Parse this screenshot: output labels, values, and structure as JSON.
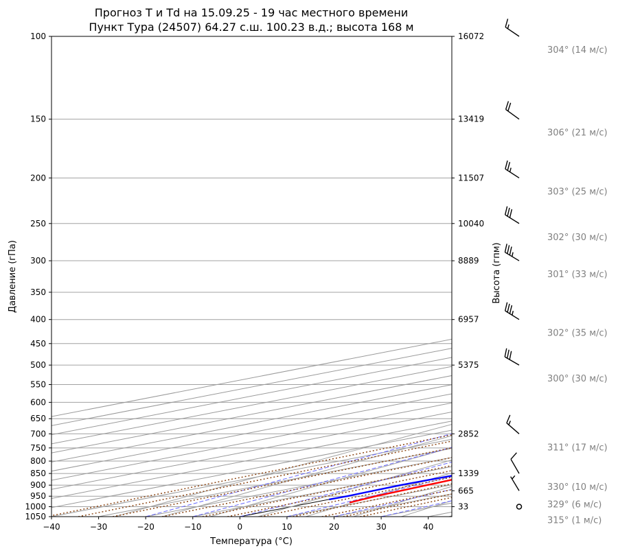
{
  "title": {
    "line1": "Прогноз T и Td на 15.09.25 - 19 час местного времени",
    "line2": "Пункт Тура (24507) 64.27 с.ш. 100.23 в.д.; высота 168 м"
  },
  "chart_data": {
    "type": "line",
    "subtype": "skew-T log-p diagram",
    "xlabel": "Температура (°C)",
    "ylabel": "Давление (гПа)",
    "ylabel_right": "Высота (гпм)",
    "xlim": [
      -40,
      45
    ],
    "ylim": [
      1050,
      100
    ],
    "y_scale": "log",
    "x_ticks": [
      -40,
      -30,
      -20,
      -10,
      0,
      10,
      20,
      30,
      40
    ],
    "y_ticks": [
      100,
      150,
      200,
      250,
      300,
      350,
      400,
      450,
      500,
      550,
      600,
      650,
      700,
      750,
      800,
      850,
      900,
      950,
      1000,
      1050
    ],
    "height_ticks": [
      {
        "p": 100,
        "h": "16072"
      },
      {
        "p": 150,
        "h": "13419"
      },
      {
        "p": 200,
        "h": "11507"
      },
      {
        "p": 250,
        "h": "10040"
      },
      {
        "p": 300,
        "h": "8889"
      },
      {
        "p": 400,
        "h": "6957"
      },
      {
        "p": 500,
        "h": "5375"
      },
      {
        "p": 700,
        "h": "2852"
      },
      {
        "p": 850,
        "h": "1339"
      },
      {
        "p": 925,
        "h": "665"
      },
      {
        "p": 1000,
        "h": "33"
      }
    ],
    "series": [
      {
        "color": "#ff0000",
        "points": [
          [
            980,
            7.8
          ],
          [
            950,
            6.4
          ],
          [
            900,
            5.1
          ],
          [
            850,
            3.7
          ],
          [
            820,
            2.6
          ],
          [
            800,
            3.3
          ],
          [
            780,
            5.4
          ],
          [
            750,
            6.8
          ],
          [
            720,
            7.4
          ],
          [
            700,
            7.7
          ],
          [
            650,
            6.4
          ],
          [
            600,
            4.8
          ],
          [
            550,
            2.3
          ],
          [
            500,
            -0.5
          ],
          [
            450,
            -4.7
          ],
          [
            400,
            -9.6
          ],
          [
            350,
            -16.1
          ],
          [
            300,
            -24.0
          ],
          [
            280,
            -27.5
          ],
          [
            260,
            -30.4
          ],
          [
            250,
            -30.8
          ],
          [
            230,
            -30.3
          ],
          [
            220,
            -31.6
          ],
          [
            200,
            -37.7
          ],
          [
            180,
            -42.8
          ],
          [
            170,
            -45.3
          ],
          [
            160,
            -49.1
          ],
          [
            150,
            -52.6
          ],
          [
            140,
            -55.1
          ],
          [
            130,
            -57.9
          ],
          [
            120,
            -60.8
          ],
          [
            110,
            -62.9
          ],
          [
            104,
            -64.4
          ]
        ]
      },
      {
        "color": "#0000ff",
        "points": [
          [
            965,
            0.0
          ],
          [
            950,
            0.3
          ],
          [
            900,
            -0.5
          ],
          [
            870,
            -0.1
          ],
          [
            850,
            0.2
          ],
          [
            800,
            2.3
          ],
          [
            780,
            -2.0
          ],
          [
            760,
            -10.4
          ],
          [
            730,
            -14.1
          ],
          [
            700,
            -19.5
          ],
          [
            670,
            -25.3
          ],
          [
            650,
            -27.4
          ],
          [
            620,
            -25.0
          ],
          [
            600,
            -17.1
          ],
          [
            570,
            -15.3
          ],
          [
            550,
            -16.8
          ],
          [
            500,
            -20.5
          ],
          [
            450,
            -26.4
          ],
          [
            400,
            -36.0
          ],
          [
            350,
            -41.8
          ],
          [
            300,
            -46.9
          ],
          [
            270,
            -48.9
          ],
          [
            255,
            -52.0
          ],
          [
            245,
            -62.0
          ],
          [
            230,
            -60.5
          ],
          [
            220,
            -57.1
          ],
          [
            210,
            -55.5
          ],
          [
            200,
            -57.1
          ],
          [
            180,
            -61.5
          ],
          [
            160,
            -65.4
          ],
          [
            140,
            -71.0
          ],
          [
            120,
            -77.5
          ],
          [
            100,
            -82.6
          ]
        ]
      }
    ],
    "winds": [
      {
        "p": 100,
        "dir": 304,
        "speed": 14,
        "label": "304° (14 м/с)"
      },
      {
        "p": 150,
        "dir": 306,
        "speed": 21,
        "label": "306° (21 м/с)"
      },
      {
        "p": 200,
        "dir": 303,
        "speed": 25,
        "label": "303° (25 м/с)"
      },
      {
        "p": 250,
        "dir": 302,
        "speed": 30,
        "label": "302° (30 м/с)"
      },
      {
        "p": 300,
        "dir": 301,
        "speed": 33,
        "label": "301° (33 м/с)"
      },
      {
        "p": 400,
        "dir": 302,
        "speed": 35,
        "label": "302° (35 м/с)"
      },
      {
        "p": 500,
        "dir": 300,
        "speed": 30,
        "label": "300° (30 м/с)"
      },
      {
        "p": 700,
        "dir": 311,
        "speed": 17,
        "label": "311° (17 м/с)"
      },
      {
        "p": 850,
        "dir": 330,
        "speed": 10,
        "label": "330° (10 м/с)"
      },
      {
        "p": 925,
        "dir": 329,
        "speed": 6,
        "label": "329° (6 м/с)"
      },
      {
        "p": 1000,
        "dir": 315,
        "speed": 1,
        "label": "315° (1 м/с)"
      }
    ],
    "colors": {
      "temperature": "#ff0000",
      "dewpoint": "#0000ff",
      "dry_adiabats": "#808080",
      "moist_adiabats": "#6666ff",
      "mixing_ratio": "#8b4513",
      "isotherms": "#808080",
      "zero_isotherm": "#000000"
    }
  }
}
